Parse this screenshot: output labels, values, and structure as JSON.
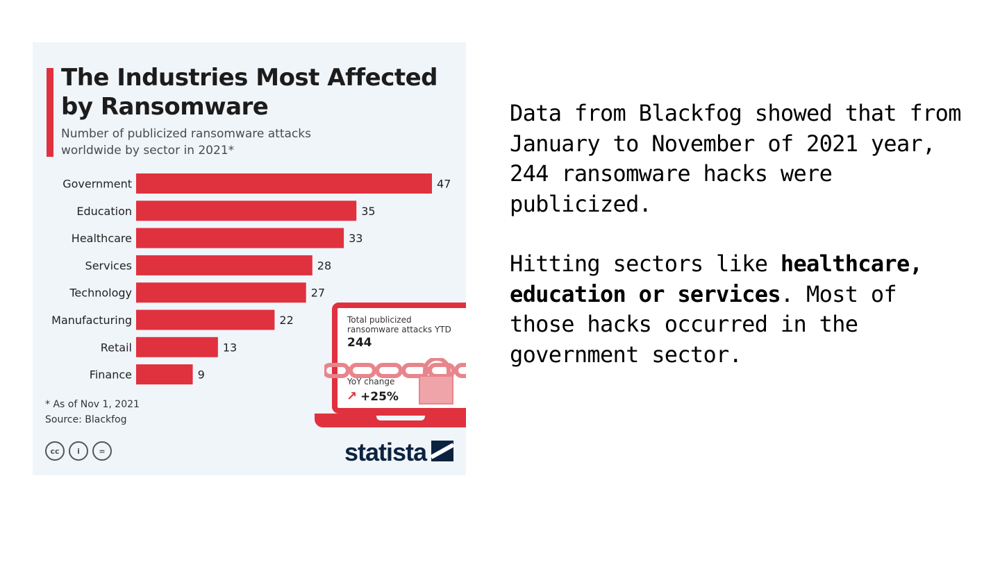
{
  "infographic": {
    "title": "The Industries Most Affected by Ransomware",
    "subtitle": "Number of publicized ransomware attacks worldwide by sector in 2021*",
    "footnote": "* As of Nov 1, 2021",
    "source": "Source: Blackfog",
    "cc_icons": [
      "cc",
      "i",
      "="
    ],
    "brand": "statista",
    "colors": {
      "bar": "#e0313f",
      "background": "#f0f5fa",
      "brand": "#0c2340"
    },
    "callout": {
      "ytd_label": "Total publicized ransomware attacks YTD",
      "ytd_value": "244",
      "yoy_label": "YoY change",
      "yoy_arrow": "↗",
      "yoy_value": "+25%"
    }
  },
  "chart_data": {
    "type": "bar",
    "orientation": "horizontal",
    "title": "The Industries Most Affected by Ransomware",
    "subtitle": "Number of publicized ransomware attacks worldwide by sector in 2021*",
    "categories": [
      "Government",
      "Education",
      "Healthcare",
      "Services",
      "Technology",
      "Manufacturing",
      "Retail",
      "Finance"
    ],
    "values": [
      47,
      35,
      33,
      28,
      27,
      22,
      13,
      9
    ],
    "xlabel": "",
    "ylabel": "",
    "xlim": [
      0,
      47
    ],
    "grid": false,
    "legend": "none"
  },
  "text_panel": {
    "p1": "Data from Blackfog showed that from January to November of 2021 year, 244 ransomware hacks were publicized.",
    "p2_before": "Hitting sectors like ",
    "p2_bold": "healthcare, education or services",
    "p2_after": ". Most of those hacks occurred in the government sector."
  }
}
